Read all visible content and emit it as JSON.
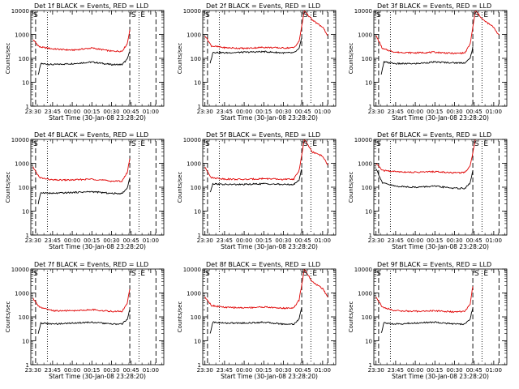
{
  "figure": {
    "xlabel": "Start Time (30-Jan-08 23:28:20)",
    "ylabel": "Counts/sec",
    "yticks": [
      "1",
      "10",
      "100",
      "1000",
      "10000"
    ],
    "xticks": [
      "23:30",
      "23:45",
      "00:00",
      "00:15",
      "00:30",
      "00:45",
      "01:00"
    ],
    "colors": {
      "events": "#000000",
      "lld": "#e00000",
      "axes": "#000000",
      "background": "#ffffff"
    }
  },
  "chart_data": [
    {
      "type": "line",
      "title": "Det 1f BLACK = Events, RED = LLD",
      "markers": {
        "S": "S",
        "E": "E",
        "left": "S"
      },
      "xlim": [
        "23:28:20",
        "01:10:00"
      ],
      "ylim": [
        1,
        10000
      ],
      "yscale": "log",
      "vlines": {
        "dashed": [
          "23:32",
          "00:44",
          "01:04"
        ],
        "dotted": [
          "23:41",
          "00:51"
        ]
      },
      "series": [
        {
          "name": "BLACK = Events",
          "x": [
            "23:34",
            "23:36",
            "23:45",
            "00:00",
            "00:15",
            "00:30",
            "00:38",
            "00:42",
            "00:44"
          ],
          "y": [
            20,
            60,
            55,
            60,
            70,
            55,
            55,
            90,
            200
          ]
        },
        {
          "name": "RED = LLD",
          "x": [
            "23:30",
            "23:35",
            "23:45",
            "00:00",
            "00:15",
            "00:30",
            "00:38",
            "00:42",
            "00:44"
          ],
          "y": [
            600,
            300,
            250,
            220,
            270,
            200,
            200,
            400,
            1500
          ]
        }
      ]
    },
    {
      "type": "line",
      "title": "Det 2f BLACK = Events, RED = LLD",
      "markers": {
        "S": "S",
        "E": "E",
        "left": "S"
      },
      "xlim": [
        "23:28:20",
        "01:10:00"
      ],
      "ylim": [
        1,
        10000
      ],
      "yscale": "log",
      "vlines": {
        "dashed": [
          "23:32",
          "00:44",
          "01:04"
        ],
        "dotted": [
          "23:41",
          "00:51"
        ]
      },
      "series": [
        {
          "name": "BLACK = Events",
          "x": [
            "23:34",
            "23:36",
            "23:45",
            "00:00",
            "00:15",
            "00:30",
            "00:38",
            "00:42",
            "00:44"
          ],
          "y": [
            60,
            180,
            170,
            180,
            190,
            170,
            170,
            250,
            700
          ]
        },
        {
          "name": "RED = LLD",
          "x": [
            "23:30",
            "23:35",
            "23:45",
            "00:00",
            "00:15",
            "00:30",
            "00:38",
            "00:42",
            "00:46",
            "00:52",
            "01:00",
            "01:04"
          ],
          "y": [
            900,
            330,
            280,
            260,
            290,
            270,
            280,
            500,
            10000,
            4000,
            2000,
            900
          ]
        }
      ]
    },
    {
      "type": "line",
      "title": "Det 3f BLACK = Events, RED = LLD",
      "markers": {
        "S": "S",
        "E": "E",
        "left": "S"
      },
      "xlim": [
        "23:28:20",
        "01:10:00"
      ],
      "ylim": [
        1,
        10000
      ],
      "yscale": "log",
      "vlines": {
        "dashed": [
          "23:32",
          "00:44",
          "01:04"
        ],
        "dotted": [
          "23:41",
          "00:51"
        ]
      },
      "series": [
        {
          "name": "BLACK = Events",
          "x": [
            "23:34",
            "23:36",
            "23:45",
            "00:00",
            "00:15",
            "00:30",
            "00:38",
            "00:42",
            "00:44"
          ],
          "y": [
            20,
            70,
            60,
            60,
            70,
            65,
            65,
            100,
            300
          ]
        },
        {
          "name": "RED = LLD",
          "x": [
            "23:30",
            "23:35",
            "23:45",
            "00:00",
            "00:15",
            "00:30",
            "00:38",
            "00:42",
            "00:46",
            "00:52",
            "01:00",
            "01:04"
          ],
          "y": [
            900,
            250,
            180,
            170,
            180,
            160,
            170,
            400,
            10000,
            4000,
            2000,
            900
          ]
        }
      ]
    },
    {
      "type": "line",
      "title": "Det 4f BLACK = Events, RED = LLD",
      "markers": {
        "S": "S",
        "E": "E",
        "left": "S"
      },
      "xlim": [
        "23:28:20",
        "01:10:00"
      ],
      "ylim": [
        1,
        10000
      ],
      "yscale": "log",
      "vlines": {
        "dashed": [
          "23:32",
          "00:44",
          "01:04"
        ],
        "dotted": [
          "23:41",
          "00:51"
        ]
      },
      "series": [
        {
          "name": "BLACK = Events",
          "x": [
            "23:34",
            "23:36",
            "23:45",
            "00:00",
            "00:15",
            "00:30",
            "00:38",
            "00:42",
            "00:44"
          ],
          "y": [
            20,
            60,
            55,
            60,
            65,
            55,
            55,
            90,
            250
          ]
        },
        {
          "name": "RED = LLD",
          "x": [
            "23:30",
            "23:35",
            "23:45",
            "00:00",
            "00:15",
            "00:30",
            "00:38",
            "00:42",
            "00:44"
          ],
          "y": [
            700,
            250,
            200,
            200,
            220,
            180,
            180,
            400,
            1600
          ]
        }
      ]
    },
    {
      "type": "line",
      "title": "Det 5f BLACK = Events, RED = LLD",
      "markers": {
        "S": "S",
        "E": "E",
        "left": "S"
      },
      "xlim": [
        "23:28:20",
        "01:10:00"
      ],
      "ylim": [
        1,
        10000
      ],
      "yscale": "log",
      "vlines": {
        "dashed": [
          "23:32",
          "00:44",
          "01:04"
        ],
        "dotted": [
          "23:41",
          "00:51"
        ]
      },
      "series": [
        {
          "name": "BLACK = Events",
          "x": [
            "23:34",
            "23:36",
            "23:45",
            "00:00",
            "00:15",
            "00:30",
            "00:38",
            "00:42",
            "00:44"
          ],
          "y": [
            60,
            140,
            130,
            130,
            140,
            130,
            130,
            200,
            600
          ]
        },
        {
          "name": "RED = LLD",
          "x": [
            "23:30",
            "23:35",
            "23:45",
            "00:00",
            "00:15",
            "00:30",
            "00:38",
            "00:42",
            "00:46",
            "00:52",
            "01:00",
            "01:04"
          ],
          "y": [
            700,
            250,
            220,
            210,
            230,
            210,
            220,
            500,
            10000,
            3000,
            2000,
            800
          ]
        }
      ]
    },
    {
      "type": "line",
      "title": "Det 6f BLACK = Events, RED = LLD",
      "markers": {
        "S": "S",
        "E": "E",
        "left": "S"
      },
      "xlim": [
        "23:28:20",
        "01:10:00"
      ],
      "ylim": [
        1,
        10000
      ],
      "yscale": "log",
      "vlines": {
        "dashed": [
          "23:32",
          "00:44",
          "01:04"
        ],
        "dotted": [
          "23:41",
          "00:51"
        ]
      },
      "series": [
        {
          "name": "BLACK = Events",
          "x": [
            "23:30",
            "23:35",
            "23:45",
            "00:00",
            "00:15",
            "00:30",
            "00:38",
            "00:42",
            "00:44"
          ],
          "y": [
            600,
            150,
            110,
            100,
            110,
            90,
            90,
            150,
            500
          ]
        },
        {
          "name": "RED = LLD",
          "x": [
            "23:30",
            "23:35",
            "23:45",
            "00:00",
            "00:15",
            "00:30",
            "00:38",
            "00:42",
            "00:46"
          ],
          "y": [
            1000,
            500,
            450,
            420,
            450,
            400,
            420,
            800,
            10000
          ]
        }
      ]
    },
    {
      "type": "line",
      "title": "Det 7f BLACK = Events, RED = LLD",
      "markers": {
        "S": "S",
        "E": "E",
        "left": "S"
      },
      "xlim": [
        "23:28:20",
        "01:10:00"
      ],
      "ylim": [
        1,
        10000
      ],
      "yscale": "log",
      "vlines": {
        "dashed": [
          "23:32",
          "00:44",
          "01:04"
        ],
        "dotted": [
          "23:41",
          "00:51"
        ]
      },
      "series": [
        {
          "name": "BLACK = Events",
          "x": [
            "23:34",
            "23:36",
            "23:45",
            "00:00",
            "00:15",
            "00:30",
            "00:38",
            "00:42",
            "00:44"
          ],
          "y": [
            20,
            55,
            50,
            55,
            60,
            50,
            50,
            80,
            200
          ]
        },
        {
          "name": "RED = LLD",
          "x": [
            "23:30",
            "23:35",
            "23:45",
            "00:00",
            "00:15",
            "00:30",
            "00:38",
            "00:42",
            "00:44"
          ],
          "y": [
            600,
            250,
            180,
            180,
            200,
            170,
            170,
            350,
            1500
          ]
        }
      ]
    },
    {
      "type": "line",
      "title": "Det 8f BLACK = Events, RED = LLD",
      "markers": {
        "S": "S",
        "E": "E",
        "left": "S"
      },
      "xlim": [
        "23:28:20",
        "01:10:00"
      ],
      "ylim": [
        1,
        10000
      ],
      "yscale": "log",
      "vlines": {
        "dashed": [
          "23:32",
          "00:44",
          "01:04"
        ],
        "dotted": [
          "23:41",
          "00:51"
        ]
      },
      "series": [
        {
          "name": "BLACK = Events",
          "x": [
            "23:34",
            "23:36",
            "23:45",
            "00:00",
            "00:15",
            "00:30",
            "00:38",
            "00:42",
            "00:44"
          ],
          "y": [
            20,
            60,
            55,
            55,
            60,
            50,
            50,
            80,
            250
          ]
        },
        {
          "name": "RED = LLD",
          "x": [
            "23:30",
            "23:35",
            "23:45",
            "00:00",
            "00:15",
            "00:30",
            "00:38",
            "00:42",
            "00:46",
            "00:52",
            "01:00",
            "01:04"
          ],
          "y": [
            700,
            300,
            250,
            240,
            260,
            230,
            240,
            500,
            10000,
            3000,
            1500,
            700
          ]
        }
      ]
    },
    {
      "type": "line",
      "title": "Det 9f BLACK = Events, RED = LLD",
      "markers": {
        "S": "S",
        "E": "E",
        "left": "S"
      },
      "xlim": [
        "23:28:20",
        "01:10:00"
      ],
      "ylim": [
        1,
        10000
      ],
      "yscale": "log",
      "vlines": {
        "dashed": [
          "23:32",
          "00:44",
          "01:04"
        ],
        "dotted": [
          "23:41",
          "00:51"
        ]
      },
      "series": [
        {
          "name": "BLACK = Events",
          "x": [
            "23:34",
            "23:36",
            "23:45",
            "00:00",
            "00:15",
            "00:30",
            "00:38",
            "00:42",
            "00:44"
          ],
          "y": [
            20,
            55,
            50,
            55,
            60,
            50,
            50,
            80,
            250
          ]
        },
        {
          "name": "RED = LLD",
          "x": [
            "23:30",
            "23:35",
            "23:45",
            "00:00",
            "00:15",
            "00:30",
            "00:38",
            "00:42",
            "00:44"
          ],
          "y": [
            700,
            250,
            180,
            170,
            180,
            160,
            170,
            350,
            2000
          ]
        }
      ]
    }
  ]
}
